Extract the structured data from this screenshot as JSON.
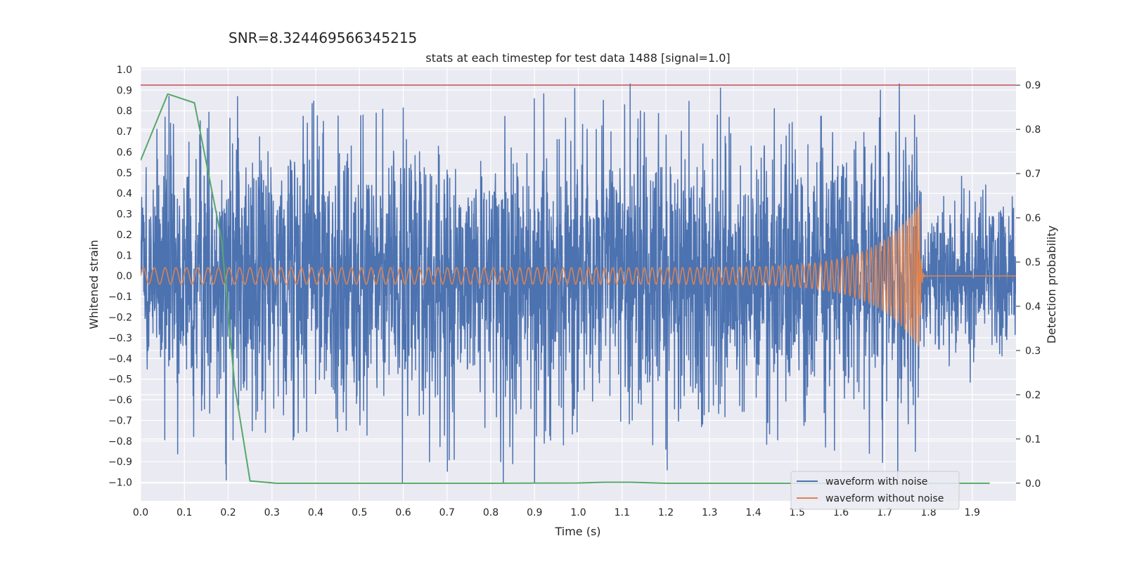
{
  "chart_data": {
    "type": "line",
    "suptitle": "SNR=8.324469566345215",
    "title": "stats at each timestep for test data 1488 [signal=1.0]",
    "xlabel": "Time (s)",
    "ylabel": "Whitened strain",
    "y2label": "Detection probability",
    "xlim": [
      0.0,
      2.0
    ],
    "ylim": [
      -1.09,
      1.01
    ],
    "y2lim": [
      -0.04,
      0.94
    ],
    "xticks": [
      "0.0",
      "0.1",
      "0.2",
      "0.3",
      "0.4",
      "0.5",
      "0.6",
      "0.7",
      "0.8",
      "0.9",
      "1.0",
      "1.1",
      "1.2",
      "1.3",
      "1.4",
      "1.5",
      "1.6",
      "1.7",
      "1.8",
      "1.9"
    ],
    "yticks": [
      "1.0",
      "0.9",
      "0.8",
      "0.7",
      "0.6",
      "0.5",
      "0.4",
      "0.3",
      "0.2",
      "0.1",
      "0.0",
      "−0.1",
      "−0.2",
      "−0.3",
      "−0.4",
      "−0.5",
      "−0.6",
      "−0.7",
      "−0.8",
      "−0.9",
      "−1.0"
    ],
    "y2ticks": [
      "0.9",
      "0.8",
      "0.7",
      "0.6",
      "0.5",
      "0.4",
      "0.3",
      "0.2",
      "0.1",
      "0.0"
    ],
    "threshold": {
      "axis": "y2",
      "value": 0.9,
      "color": "#c44e52"
    },
    "colors": {
      "with_noise": "#4c72b0",
      "without_noise": "#dd8452",
      "probability": "#55a868",
      "grid": "#ffffff",
      "background": "#eaeaf2"
    },
    "series": [
      {
        "name": "waveform with noise",
        "axis": "y",
        "style": "noise",
        "amplitude": 0.32,
        "peaks": [
          {
            "t": 0.065,
            "v": 0.87
          },
          {
            "t": 0.9,
            "v": -1.0
          },
          {
            "t": 1.325,
            "v": 0.91
          },
          {
            "t": 1.69,
            "v": 0.9
          },
          {
            "t": 1.665,
            "v": -0.86
          },
          {
            "t": 0.66,
            "v": -0.9
          },
          {
            "t": 0.85,
            "v": -0.91
          },
          {
            "t": 1.2,
            "v": -0.84
          },
          {
            "t": 1.77,
            "v": -0.85
          },
          {
            "t": 0.255,
            "v": -0.75
          },
          {
            "t": 0.36,
            "v": -0.76
          }
        ]
      },
      {
        "name": "waveform without noise",
        "axis": "y",
        "style": "chirp",
        "start_amplitude": 0.04,
        "peak_amplitude": 0.35,
        "merger_time": 1.78,
        "start_freq_hz": 40,
        "end_freq_hz": 220
      },
      {
        "name": "detection probability",
        "axis": "y2",
        "style": "line",
        "x": [
          0.0,
          0.062,
          0.123,
          0.185,
          0.215,
          0.25,
          0.31,
          0.4,
          0.6,
          0.8,
          1.0,
          1.06,
          1.12,
          1.2,
          1.4,
          1.6,
          1.8,
          1.94
        ],
        "values": [
          0.73,
          0.88,
          0.86,
          0.55,
          0.22,
          0.005,
          0.0,
          0.0,
          0.0,
          0.0,
          0.0005,
          0.002,
          0.002,
          0.0,
          0.0,
          0.0,
          0.0,
          0.0
        ]
      }
    ],
    "legend": {
      "position": "lower-right",
      "entries": [
        "waveform with noise",
        "waveform without noise"
      ]
    }
  }
}
